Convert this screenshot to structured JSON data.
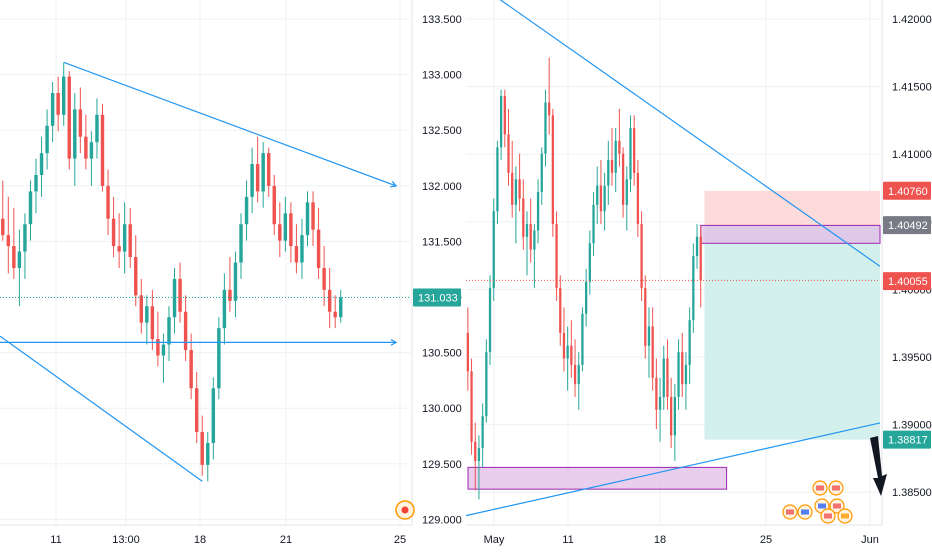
{
  "colors": {
    "up": "#26a69a",
    "down": "#ef5350",
    "trendline": "#2196f3",
    "grid": "#eef0f3",
    "axis_text": "#131722",
    "zone_fill": "#e1bee7",
    "zone_stroke": "#9c27b0",
    "stop_fill": "#fbd5d4",
    "target_fill": "#cfeeea",
    "badge_green": "#26a69a",
    "badge_red": "#ef5350",
    "badge_gray": "#787b86"
  },
  "chart_data": [
    {
      "type": "candlestick",
      "instrument_hint": "left panel",
      "x_ticks": [
        "11",
        "13:00",
        "18",
        "21",
        "25"
      ],
      "y_ticks": [
        "133.500",
        "133.000",
        "132.500",
        "132.000",
        "131.500",
        "131.000",
        "130.500",
        "130.000",
        "129.500",
        "129.000"
      ],
      "ylim": [
        128.95,
        133.75
      ],
      "last_price": "131.033",
      "candles": [
        {
          "o": 131.42,
          "h": 131.9,
          "l": 131.1,
          "c": 131.75
        },
        {
          "o": 131.75,
          "h": 132.1,
          "l": 131.55,
          "c": 131.6
        },
        {
          "o": 131.6,
          "h": 131.95,
          "l": 131.25,
          "c": 131.5
        },
        {
          "o": 131.5,
          "h": 131.85,
          "l": 131.2,
          "c": 131.3
        },
        {
          "o": 131.3,
          "h": 131.65,
          "l": 130.95,
          "c": 131.45
        },
        {
          "o": 131.45,
          "h": 131.8,
          "l": 131.2,
          "c": 131.7
        },
        {
          "o": 131.7,
          "h": 132.1,
          "l": 131.55,
          "c": 132.0
        },
        {
          "o": 132.0,
          "h": 132.3,
          "l": 131.8,
          "c": 132.15
        },
        {
          "o": 132.15,
          "h": 132.5,
          "l": 131.95,
          "c": 132.35
        },
        {
          "o": 132.35,
          "h": 132.75,
          "l": 132.2,
          "c": 132.6
        },
        {
          "o": 132.6,
          "h": 133.0,
          "l": 132.45,
          "c": 132.9
        },
        {
          "o": 132.9,
          "h": 133.05,
          "l": 132.55,
          "c": 132.7
        },
        {
          "o": 132.7,
          "h": 133.18,
          "l": 132.6,
          "c": 133.05
        },
        {
          "o": 133.05,
          "h": 133.1,
          "l": 132.2,
          "c": 132.3
        },
        {
          "o": 132.3,
          "h": 132.9,
          "l": 132.05,
          "c": 132.75
        },
        {
          "o": 132.75,
          "h": 132.95,
          "l": 132.35,
          "c": 132.5
        },
        {
          "o": 132.5,
          "h": 132.7,
          "l": 132.2,
          "c": 132.3
        },
        {
          "o": 132.3,
          "h": 132.55,
          "l": 132.05,
          "c": 132.45
        },
        {
          "o": 132.45,
          "h": 132.85,
          "l": 132.3,
          "c": 132.7
        },
        {
          "o": 132.7,
          "h": 132.8,
          "l": 132.0,
          "c": 132.05
        },
        {
          "o": 132.05,
          "h": 132.2,
          "l": 131.6,
          "c": 131.75
        },
        {
          "o": 131.75,
          "h": 131.95,
          "l": 131.4,
          "c": 131.5
        },
        {
          "o": 131.5,
          "h": 131.8,
          "l": 131.3,
          "c": 131.45
        },
        {
          "o": 131.45,
          "h": 131.9,
          "l": 131.25,
          "c": 131.7
        },
        {
          "o": 131.7,
          "h": 131.85,
          "l": 131.3,
          "c": 131.4
        },
        {
          "o": 131.4,
          "h": 131.6,
          "l": 130.95,
          "c": 131.05
        },
        {
          "o": 131.05,
          "h": 131.2,
          "l": 130.7,
          "c": 130.8
        },
        {
          "o": 130.8,
          "h": 131.05,
          "l": 130.6,
          "c": 130.95
        },
        {
          "o": 130.95,
          "h": 131.1,
          "l": 130.55,
          "c": 130.65
        },
        {
          "o": 130.65,
          "h": 130.9,
          "l": 130.4,
          "c": 130.5
        },
        {
          "o": 130.5,
          "h": 130.7,
          "l": 130.25,
          "c": 130.6
        },
        {
          "o": 130.6,
          "h": 130.95,
          "l": 130.45,
          "c": 130.85
        },
        {
          "o": 130.85,
          "h": 131.3,
          "l": 130.7,
          "c": 131.2
        },
        {
          "o": 131.2,
          "h": 131.35,
          "l": 130.8,
          "c": 130.9
        },
        {
          "o": 130.9,
          "h": 131.05,
          "l": 130.45,
          "c": 130.55
        },
        {
          "o": 130.55,
          "h": 130.7,
          "l": 130.1,
          "c": 130.2
        },
        {
          "o": 130.2,
          "h": 130.35,
          "l": 129.7,
          "c": 129.8
        },
        {
          "o": 129.8,
          "h": 129.95,
          "l": 129.4,
          "c": 129.5
        },
        {
          "o": 129.5,
          "h": 129.8,
          "l": 129.35,
          "c": 129.7
        },
        {
          "o": 129.7,
          "h": 130.3,
          "l": 129.55,
          "c": 130.2
        },
        {
          "o": 130.2,
          "h": 130.85,
          "l": 130.1,
          "c": 130.75
        },
        {
          "o": 130.75,
          "h": 131.25,
          "l": 130.6,
          "c": 131.1
        },
        {
          "o": 131.1,
          "h": 131.4,
          "l": 130.9,
          "c": 131.0
        },
        {
          "o": 131.0,
          "h": 131.45,
          "l": 130.85,
          "c": 131.35
        },
        {
          "o": 131.35,
          "h": 131.8,
          "l": 131.2,
          "c": 131.7
        },
        {
          "o": 131.7,
          "h": 132.1,
          "l": 131.55,
          "c": 131.95
        },
        {
          "o": 131.95,
          "h": 132.4,
          "l": 131.8,
          "c": 132.25
        },
        {
          "o": 132.25,
          "h": 132.5,
          "l": 131.9,
          "c": 132.0
        },
        {
          "o": 132.0,
          "h": 132.45,
          "l": 131.85,
          "c": 132.35
        },
        {
          "o": 132.35,
          "h": 132.4,
          "l": 131.95,
          "c": 132.05
        },
        {
          "o": 132.05,
          "h": 132.15,
          "l": 131.6,
          "c": 131.7
        },
        {
          "o": 131.7,
          "h": 131.9,
          "l": 131.4,
          "c": 131.55
        },
        {
          "o": 131.55,
          "h": 131.95,
          "l": 131.45,
          "c": 131.8
        },
        {
          "o": 131.8,
          "h": 131.9,
          "l": 131.35,
          "c": 131.5
        },
        {
          "o": 131.5,
          "h": 131.7,
          "l": 131.25,
          "c": 131.35
        },
        {
          "o": 131.35,
          "h": 131.75,
          "l": 131.2,
          "c": 131.6
        },
        {
          "o": 131.6,
          "h": 132.0,
          "l": 131.5,
          "c": 131.9
        },
        {
          "o": 131.9,
          "h": 132.0,
          "l": 131.5,
          "c": 131.65
        },
        {
          "o": 131.65,
          "h": 131.85,
          "l": 131.2,
          "c": 131.3
        },
        {
          "o": 131.3,
          "h": 131.5,
          "l": 130.95,
          "c": 131.1
        },
        {
          "o": 131.1,
          "h": 131.3,
          "l": 130.75,
          "c": 130.9
        },
        {
          "o": 130.9,
          "h": 131.05,
          "l": 130.75,
          "c": 130.85
        },
        {
          "o": 130.85,
          "h": 131.1,
          "l": 130.8,
          "c": 131.03
        }
      ],
      "annotations": [
        {
          "kind": "trendline",
          "from": {
            "i": 12,
            "p": 133.18
          },
          "to": {
            "i": 72,
            "p": 132.05
          },
          "arrow": true
        },
        {
          "kind": "trendline",
          "from": {
            "i": -7,
            "p": 130.62
          },
          "to": {
            "i": 72,
            "p": 130.62
          },
          "arrow": true
        },
        {
          "kind": "trendline",
          "from": {
            "i": -7,
            "p": 130.95
          },
          "to": {
            "i": 37,
            "p": 129.35
          },
          "arrow": false
        }
      ]
    },
    {
      "type": "candlestick",
      "instrument_hint": "right panel",
      "x_ticks": [
        "May",
        "11",
        "18",
        "25",
        "Jun"
      ],
      "y_ticks": [
        "1.42000",
        "1.41500",
        "1.41000",
        "1.40500",
        "1.40000",
        "1.39500",
        "1.39000",
        "1.38500"
      ],
      "ylim": [
        1.3815,
        1.4225
      ],
      "last_price": "1.40055",
      "price_labels": {
        "stop": "1.40760",
        "entry": "1.40492",
        "current": "1.40055",
        "target": "1.38817"
      },
      "candles": [
        {
          "o": 1.3965,
          "h": 1.3985,
          "l": 1.392,
          "c": 1.3935
        },
        {
          "o": 1.3935,
          "h": 1.3945,
          "l": 1.387,
          "c": 1.388
        },
        {
          "o": 1.388,
          "h": 1.3895,
          "l": 1.3842,
          "c": 1.3865
        },
        {
          "o": 1.3865,
          "h": 1.3885,
          "l": 1.3835,
          "c": 1.3875
        },
        {
          "o": 1.3875,
          "h": 1.391,
          "l": 1.386,
          "c": 1.39
        },
        {
          "o": 1.39,
          "h": 1.396,
          "l": 1.3895,
          "c": 1.395
        },
        {
          "o": 1.395,
          "h": 1.401,
          "l": 1.394,
          "c": 1.4
        },
        {
          "o": 1.4,
          "h": 1.407,
          "l": 1.399,
          "c": 1.406
        },
        {
          "o": 1.406,
          "h": 1.4115,
          "l": 1.405,
          "c": 1.411
        },
        {
          "o": 1.411,
          "h": 1.4155,
          "l": 1.41,
          "c": 1.415
        },
        {
          "o": 1.415,
          "h": 1.4155,
          "l": 1.411,
          "c": 1.412
        },
        {
          "o": 1.412,
          "h": 1.414,
          "l": 1.408,
          "c": 1.409
        },
        {
          "o": 1.409,
          "h": 1.4115,
          "l": 1.4055,
          "c": 1.4065
        },
        {
          "o": 1.4065,
          "h": 1.4095,
          "l": 1.4035,
          "c": 1.4085
        },
        {
          "o": 1.4085,
          "h": 1.4105,
          "l": 1.406,
          "c": 1.407
        },
        {
          "o": 1.407,
          "h": 1.4085,
          "l": 1.403,
          "c": 1.404
        },
        {
          "o": 1.404,
          "h": 1.406,
          "l": 1.401,
          "c": 1.405
        },
        {
          "o": 1.405,
          "h": 1.407,
          "l": 1.402,
          "c": 1.403
        },
        {
          "o": 1.403,
          "h": 1.405,
          "l": 1.4,
          "c": 1.4045
        },
        {
          "o": 1.4045,
          "h": 1.4085,
          "l": 1.4035,
          "c": 1.4075
        },
        {
          "o": 1.4075,
          "h": 1.411,
          "l": 1.4065,
          "c": 1.4105
        },
        {
          "o": 1.4105,
          "h": 1.4155,
          "l": 1.4095,
          "c": 1.4145
        },
        {
          "o": 1.4145,
          "h": 1.418,
          "l": 1.412,
          "c": 1.4135
        },
        {
          "o": 1.4135,
          "h": 1.414,
          "l": 1.404,
          "c": 1.405
        },
        {
          "o": 1.405,
          "h": 1.406,
          "l": 1.399,
          "c": 1.4
        },
        {
          "o": 1.4,
          "h": 1.401,
          "l": 1.3955,
          "c": 1.3965
        },
        {
          "o": 1.3965,
          "h": 1.3985,
          "l": 1.3935,
          "c": 1.3945
        },
        {
          "o": 1.3945,
          "h": 1.397,
          "l": 1.392,
          "c": 1.3955
        },
        {
          "o": 1.3955,
          "h": 1.3975,
          "l": 1.393,
          "c": 1.394
        },
        {
          "o": 1.394,
          "h": 1.396,
          "l": 1.3915,
          "c": 1.3925
        },
        {
          "o": 1.3925,
          "h": 1.395,
          "l": 1.3905,
          "c": 1.394
        },
        {
          "o": 1.394,
          "h": 1.3985,
          "l": 1.3935,
          "c": 1.398
        },
        {
          "o": 1.398,
          "h": 1.4015,
          "l": 1.397,
          "c": 1.4005
        },
        {
          "o": 1.4005,
          "h": 1.4045,
          "l": 1.3995,
          "c": 1.4035
        },
        {
          "o": 1.4035,
          "h": 1.4075,
          "l": 1.4025,
          "c": 1.4065
        },
        {
          "o": 1.4065,
          "h": 1.4095,
          "l": 1.405,
          "c": 1.408
        },
        {
          "o": 1.408,
          "h": 1.41,
          "l": 1.405,
          "c": 1.406
        },
        {
          "o": 1.406,
          "h": 1.409,
          "l": 1.4045,
          "c": 1.408
        },
        {
          "o": 1.408,
          "h": 1.4115,
          "l": 1.4065,
          "c": 1.41
        },
        {
          "o": 1.41,
          "h": 1.4125,
          "l": 1.408,
          "c": 1.409
        },
        {
          "o": 1.409,
          "h": 1.4125,
          "l": 1.4075,
          "c": 1.4115
        },
        {
          "o": 1.4115,
          "h": 1.414,
          "l": 1.4095,
          "c": 1.4105
        },
        {
          "o": 1.4105,
          "h": 1.411,
          "l": 1.4055,
          "c": 1.4065
        },
        {
          "o": 1.4065,
          "h": 1.4095,
          "l": 1.4045,
          "c": 1.4085
        },
        {
          "o": 1.4085,
          "h": 1.4135,
          "l": 1.4075,
          "c": 1.4125
        },
        {
          "o": 1.4125,
          "h": 1.4135,
          "l": 1.408,
          "c": 1.409
        },
        {
          "o": 1.409,
          "h": 1.41,
          "l": 1.404,
          "c": 1.405
        },
        {
          "o": 1.405,
          "h": 1.406,
          "l": 1.399,
          "c": 1.4
        },
        {
          "o": 1.4,
          "h": 1.401,
          "l": 1.3945,
          "c": 1.3955
        },
        {
          "o": 1.3955,
          "h": 1.3985,
          "l": 1.393,
          "c": 1.397
        },
        {
          "o": 1.397,
          "h": 1.3985,
          "l": 1.392,
          "c": 1.393
        },
        {
          "o": 1.393,
          "h": 1.3945,
          "l": 1.389,
          "c": 1.3905
        },
        {
          "o": 1.3905,
          "h": 1.393,
          "l": 1.388,
          "c": 1.3915
        },
        {
          "o": 1.3915,
          "h": 1.3955,
          "l": 1.3905,
          "c": 1.3945
        },
        {
          "o": 1.3945,
          "h": 1.396,
          "l": 1.3905,
          "c": 1.3915
        },
        {
          "o": 1.3915,
          "h": 1.393,
          "l": 1.3875,
          "c": 1.3885
        },
        {
          "o": 1.3885,
          "h": 1.3925,
          "l": 1.3865,
          "c": 1.3915
        },
        {
          "o": 1.3915,
          "h": 1.396,
          "l": 1.3905,
          "c": 1.395
        },
        {
          "o": 1.395,
          "h": 1.3965,
          "l": 1.3915,
          "c": 1.3925
        },
        {
          "o": 1.3925,
          "h": 1.395,
          "l": 1.3905,
          "c": 1.394
        },
        {
          "o": 1.394,
          "h": 1.3985,
          "l": 1.3925,
          "c": 1.3975
        },
        {
          "o": 1.3975,
          "h": 1.4035,
          "l": 1.3965,
          "c": 1.4025
        },
        {
          "o": 1.4025,
          "h": 1.405,
          "l": 1.4015,
          "c": 1.404
        },
        {
          "o": 1.404,
          "h": 1.4048,
          "l": 1.3985,
          "c": 1.4006
        }
      ],
      "annotations": [
        {
          "kind": "trendline",
          "from": {
            "i": -1,
            "p": 1.4245
          },
          "to": {
            "i": 112,
            "p": 1.4016
          },
          "arrow": false
        },
        {
          "kind": "trendline",
          "from": {
            "i": -1,
            "p": 1.3822
          },
          "to": {
            "i": 112,
            "p": 1.3895
          },
          "arrow": false
        },
        {
          "kind": "zone",
          "x0": -1,
          "x1": 70,
          "p0": 1.3843,
          "p1": 1.386
        },
        {
          "kind": "zone",
          "x0": 63,
          "x1": 112,
          "p0": 1.4035,
          "p1": 1.4049
        },
        {
          "kind": "position",
          "x0": 64,
          "x1": 112,
          "entry": 1.40492,
          "stop": 1.4076,
          "target": 1.38817
        }
      ]
    }
  ]
}
